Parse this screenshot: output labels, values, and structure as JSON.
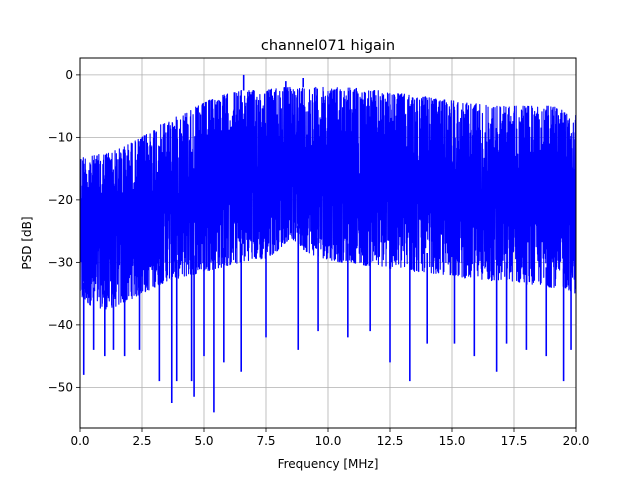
{
  "chart_data": {
    "type": "line",
    "title": "channel071 higain",
    "xlabel": "Frequency [MHz]",
    "ylabel": "PSD [dB]",
    "xlim": [
      0,
      20
    ],
    "ylim": [
      -56.5,
      2.7
    ],
    "xticks": [
      0.0,
      2.5,
      5.0,
      7.5,
      10.0,
      12.5,
      15.0,
      17.5,
      20.0
    ],
    "xtick_labels": [
      "0.0",
      "2.5",
      "5.0",
      "7.5",
      "10.0",
      "12.5",
      "15.0",
      "17.5",
      "20.0"
    ],
    "yticks": [
      0,
      -10,
      -20,
      -30,
      -40,
      -50
    ],
    "ytick_labels": [
      "0",
      "−10",
      "−20",
      "−30",
      "−40",
      "−50"
    ],
    "grid": true,
    "legend": "none",
    "series": [
      {
        "color": "#0000ff",
        "upper_envelope": {
          "x": [
            0.0,
            0.5,
            1.0,
            1.5,
            2.0,
            2.5,
            3.0,
            3.5,
            4.0,
            4.5,
            5.0,
            5.5,
            6.0,
            6.5,
            7.0,
            7.5,
            8.0,
            8.5,
            9.0,
            9.5,
            10.0,
            10.5,
            11.0,
            11.5,
            12.0,
            12.5,
            13.0,
            13.5,
            14.0,
            14.5,
            15.0,
            15.5,
            16.0,
            16.5,
            17.0,
            17.5,
            18.0,
            18.5,
            19.0,
            19.5,
            20.0
          ],
          "y": [
            -13,
            -13,
            -12.5,
            -12,
            -11,
            -10,
            -8.5,
            -7.5,
            -6.5,
            -5.5,
            -4.5,
            -3.5,
            -3,
            -2.5,
            -2.5,
            -2.5,
            -2,
            -2,
            -2,
            -2,
            -2,
            -2,
            -2,
            -2.5,
            -2.5,
            -3,
            -3,
            -3.5,
            -3.5,
            -4,
            -4,
            -4.5,
            -4.5,
            -5,
            -5,
            -5,
            -5,
            -5,
            -5,
            -5.5,
            -5.5
          ]
        },
        "lower_envelope": {
          "x": [
            0.0,
            0.5,
            1.0,
            1.5,
            2.0,
            2.5,
            3.0,
            3.5,
            4.0,
            4.5,
            5.0,
            5.5,
            6.0,
            6.5,
            7.0,
            7.5,
            8.0,
            8.5,
            9.0,
            9.5,
            10.0,
            10.5,
            11.0,
            11.5,
            12.0,
            12.5,
            13.0,
            13.5,
            14.0,
            14.5,
            15.0,
            15.5,
            16.0,
            16.5,
            17.0,
            17.5,
            18.0,
            18.5,
            19.0,
            19.5,
            20.0
          ],
          "y": [
            -36,
            -37,
            -37.5,
            -37,
            -36,
            -35,
            -34,
            -33,
            -32.5,
            -32,
            -31.5,
            -31,
            -30.5,
            -30,
            -29.5,
            -29.5,
            -28,
            -26,
            -28,
            -29,
            -29.5,
            -30,
            -30,
            -30.5,
            -30.5,
            -31,
            -31,
            -31.5,
            -31.5,
            -32,
            -32,
            -32.5,
            -32.5,
            -33,
            -33,
            -33,
            -33.5,
            -33.5,
            -34,
            -34,
            -35
          ]
        },
        "peaks": [
          {
            "x": 6.6,
            "y": 0.0
          },
          {
            "x": 8.3,
            "y": -1.0
          },
          {
            "x": 9.0,
            "y": -0.5
          }
        ],
        "dips": [
          {
            "x": 0.15,
            "y": -48
          },
          {
            "x": 0.55,
            "y": -44
          },
          {
            "x": 1.0,
            "y": -45
          },
          {
            "x": 1.35,
            "y": -44
          },
          {
            "x": 1.8,
            "y": -45
          },
          {
            "x": 2.4,
            "y": -44
          },
          {
            "x": 3.2,
            "y": -49
          },
          {
            "x": 3.7,
            "y": -52.5
          },
          {
            "x": 3.9,
            "y": -49
          },
          {
            "x": 4.5,
            "y": -49
          },
          {
            "x": 4.6,
            "y": -51.5
          },
          {
            "x": 5.0,
            "y": -45
          },
          {
            "x": 5.4,
            "y": -54
          },
          {
            "x": 5.8,
            "y": -46
          },
          {
            "x": 6.5,
            "y": -47.5
          },
          {
            "x": 7.5,
            "y": -42
          },
          {
            "x": 8.8,
            "y": -44
          },
          {
            "x": 9.6,
            "y": -41
          },
          {
            "x": 10.8,
            "y": -42
          },
          {
            "x": 11.7,
            "y": -41
          },
          {
            "x": 12.5,
            "y": -46
          },
          {
            "x": 13.3,
            "y": -49
          },
          {
            "x": 14.0,
            "y": -43
          },
          {
            "x": 15.1,
            "y": -43
          },
          {
            "x": 15.9,
            "y": -45
          },
          {
            "x": 16.8,
            "y": -47.5
          },
          {
            "x": 17.2,
            "y": -43
          },
          {
            "x": 18.0,
            "y": -44
          },
          {
            "x": 18.8,
            "y": -45
          },
          {
            "x": 19.5,
            "y": -49
          },
          {
            "x": 19.8,
            "y": -44
          }
        ]
      }
    ]
  }
}
